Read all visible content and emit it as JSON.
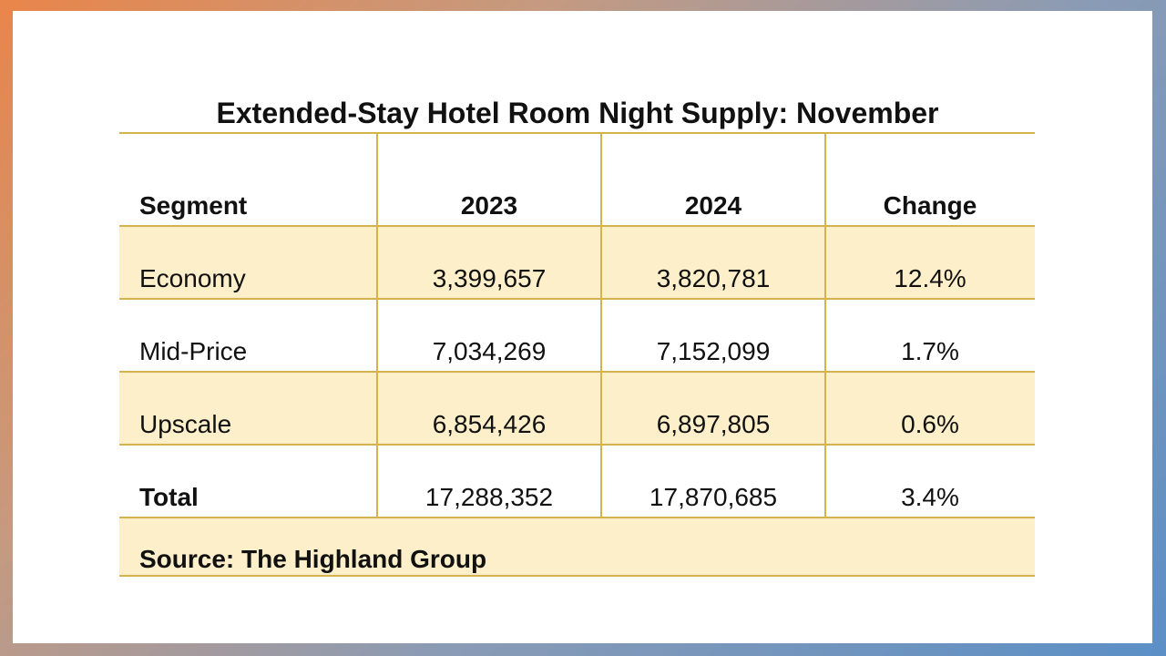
{
  "chart_data": {
    "type": "table",
    "title": "Extended-Stay Hotel Room Night Supply: November",
    "columns": [
      "Segment",
      "2023",
      "2024",
      "Change"
    ],
    "rows": [
      {
        "segment": "Economy",
        "y2023": "3,399,657",
        "y2024": "3,820,781",
        "change": "12.4%"
      },
      {
        "segment": "Mid-Price",
        "y2023": "7,034,269",
        "y2024": "7,152,099",
        "change": "1.7%"
      },
      {
        "segment": "Upscale",
        "y2023": "6,854,426",
        "y2024": "6,897,805",
        "change": "0.6%"
      },
      {
        "segment": "Total",
        "y2023": "17,288,352",
        "y2024": "17,870,685",
        "change": "3.4%"
      }
    ],
    "source": "Source: The Highland Group"
  },
  "colors": {
    "row_shade": "#fdefc9",
    "rule": "#d4b24c",
    "text": "#111111"
  }
}
